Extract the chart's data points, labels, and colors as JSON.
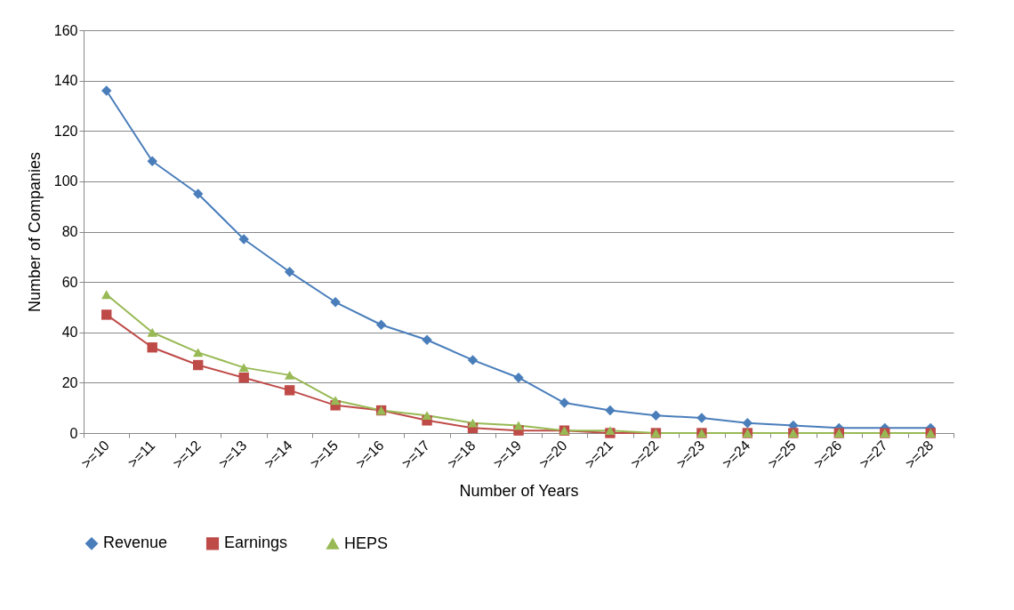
{
  "chart_data": {
    "type": "line",
    "xlabel": "Number of Years",
    "ylabel": "Number of Companies",
    "categories": [
      ">=10",
      ">=11",
      ">=12",
      ">=13",
      ">=14",
      ">=15",
      ">=16",
      ">=17",
      ">=18",
      ">=19",
      ">=20",
      ">=21",
      ">=22",
      ">=23",
      ">=24",
      ">=25",
      ">=26",
      ">=27",
      ">=28"
    ],
    "series": [
      {
        "name": "Revenue",
        "color": "#4a7ebb",
        "marker": "diamond",
        "values": [
          136,
          108,
          95,
          77,
          64,
          52,
          43,
          37,
          29,
          22,
          12,
          9,
          7,
          6,
          4,
          3,
          2,
          2,
          2
        ]
      },
      {
        "name": "Earnings",
        "color": "#be4b48",
        "marker": "square",
        "values": [
          47,
          34,
          27,
          22,
          17,
          11,
          9,
          5,
          2,
          1,
          1,
          0,
          0,
          0,
          0,
          0,
          0,
          0,
          0
        ]
      },
      {
        "name": "HEPS",
        "color": "#98b954",
        "marker": "triangle",
        "values": [
          55,
          40,
          32,
          26,
          23,
          13,
          9,
          7,
          4,
          3,
          1,
          1,
          0,
          0,
          0,
          0,
          0,
          0,
          0
        ]
      }
    ],
    "ylim": [
      0,
      160
    ],
    "yticks": [
      0,
      20,
      40,
      60,
      80,
      100,
      120,
      140,
      160
    ],
    "grid": "y",
    "legend": "bottom",
    "line_style": "solid"
  }
}
